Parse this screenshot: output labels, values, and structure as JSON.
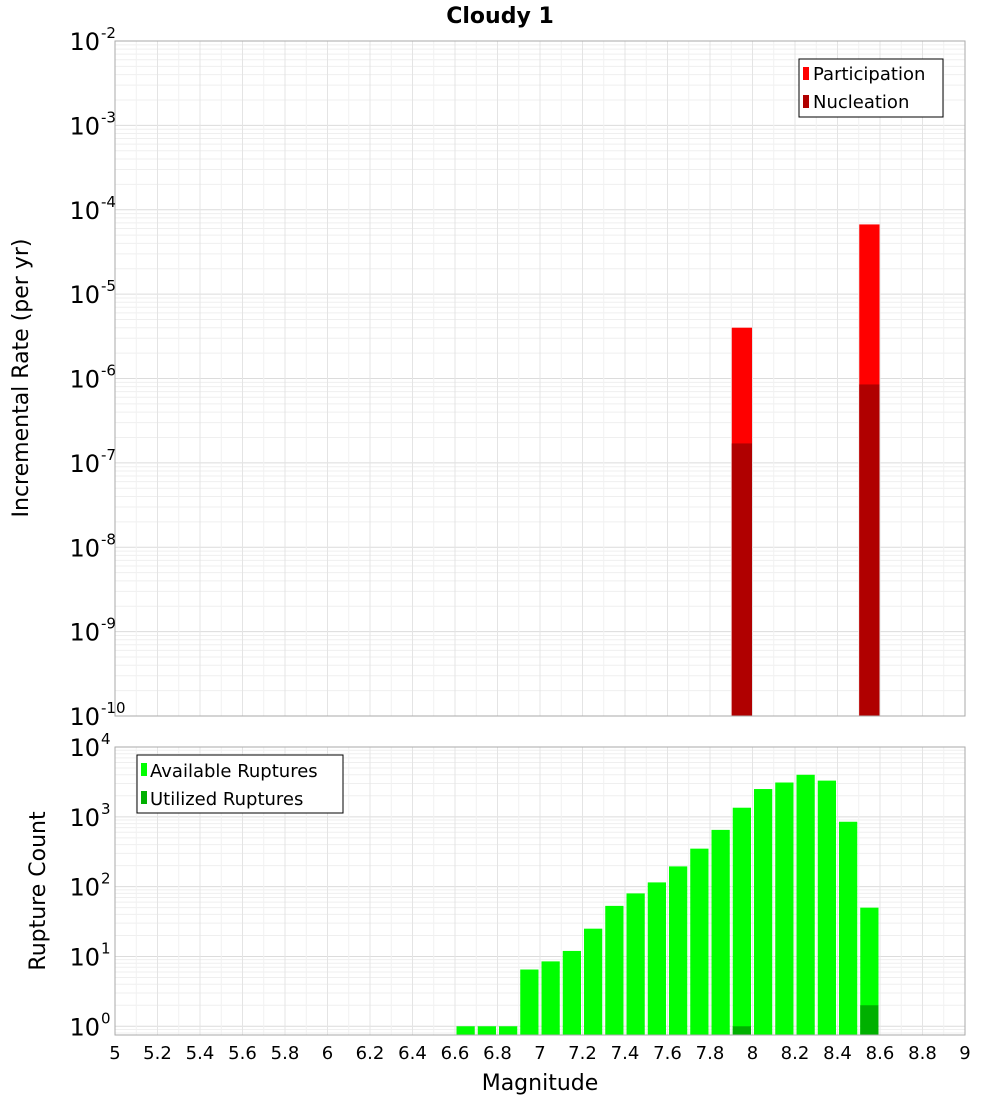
{
  "chart_data": [
    {
      "type": "bar",
      "title": "Cloudy 1",
      "xlabel": "",
      "ylabel": "Incremental Rate (per yr)",
      "yscale": "log",
      "xlim": [
        5,
        9
      ],
      "ylim": [
        1e-10,
        0.01
      ],
      "y_tick_exponents": [
        -10,
        -9,
        -8,
        -7,
        -6,
        -5,
        -4,
        -3,
        -2
      ],
      "bin_width": 0.1,
      "grid": true,
      "legend_position": "top-right",
      "series": [
        {
          "name": "Participation",
          "color": "#ff0000",
          "points": [
            {
              "x": 7.95,
              "y": 4e-06
            },
            {
              "x": 8.55,
              "y": 6.7e-05
            }
          ]
        },
        {
          "name": "Nucleation",
          "color": "#b00000",
          "points": [
            {
              "x": 7.95,
              "y": 1.7e-07
            },
            {
              "x": 8.55,
              "y": 8.5e-07
            }
          ]
        }
      ]
    },
    {
      "type": "bar",
      "title": "",
      "xlabel": "Magnitude",
      "ylabel": "Rupture Count",
      "yscale": "log",
      "xlim": [
        5,
        9
      ],
      "ylim": [
        0.75,
        10000
      ],
      "y_tick_exponents": [
        0,
        1,
        2,
        3,
        4
      ],
      "x_ticks": [
        "5",
        "5.2",
        "5.4",
        "5.6",
        "5.8",
        "6",
        "6.2",
        "6.4",
        "6.6",
        "6.8",
        "7",
        "7.2",
        "7.4",
        "7.6",
        "7.8",
        "8",
        "8.2",
        "8.4",
        "8.6",
        "8.8",
        "9"
      ],
      "bin_width": 0.1,
      "grid": true,
      "legend_position": "top-left",
      "series": [
        {
          "name": "Available Ruptures",
          "color": "#00ff00",
          "points": [
            {
              "x": 6.65,
              "y": 1
            },
            {
              "x": 6.75,
              "y": 1
            },
            {
              "x": 6.85,
              "y": 1
            },
            {
              "x": 6.95,
              "y": 6.5
            },
            {
              "x": 7.05,
              "y": 8.5
            },
            {
              "x": 7.15,
              "y": 12
            },
            {
              "x": 7.25,
              "y": 25
            },
            {
              "x": 7.35,
              "y": 53
            },
            {
              "x": 7.45,
              "y": 80
            },
            {
              "x": 7.55,
              "y": 115
            },
            {
              "x": 7.65,
              "y": 195
            },
            {
              "x": 7.75,
              "y": 350
            },
            {
              "x": 7.85,
              "y": 650
            },
            {
              "x": 7.95,
              "y": 1350
            },
            {
              "x": 8.05,
              "y": 2500
            },
            {
              "x": 8.15,
              "y": 3100
            },
            {
              "x": 8.25,
              "y": 4000
            },
            {
              "x": 8.35,
              "y": 3300
            },
            {
              "x": 8.45,
              "y": 850
            },
            {
              "x": 8.55,
              "y": 50
            }
          ]
        },
        {
          "name": "Utilized Ruptures",
          "color": "#00b000",
          "points": [
            {
              "x": 7.95,
              "y": 1
            },
            {
              "x": 8.55,
              "y": 2
            }
          ]
        }
      ]
    }
  ]
}
